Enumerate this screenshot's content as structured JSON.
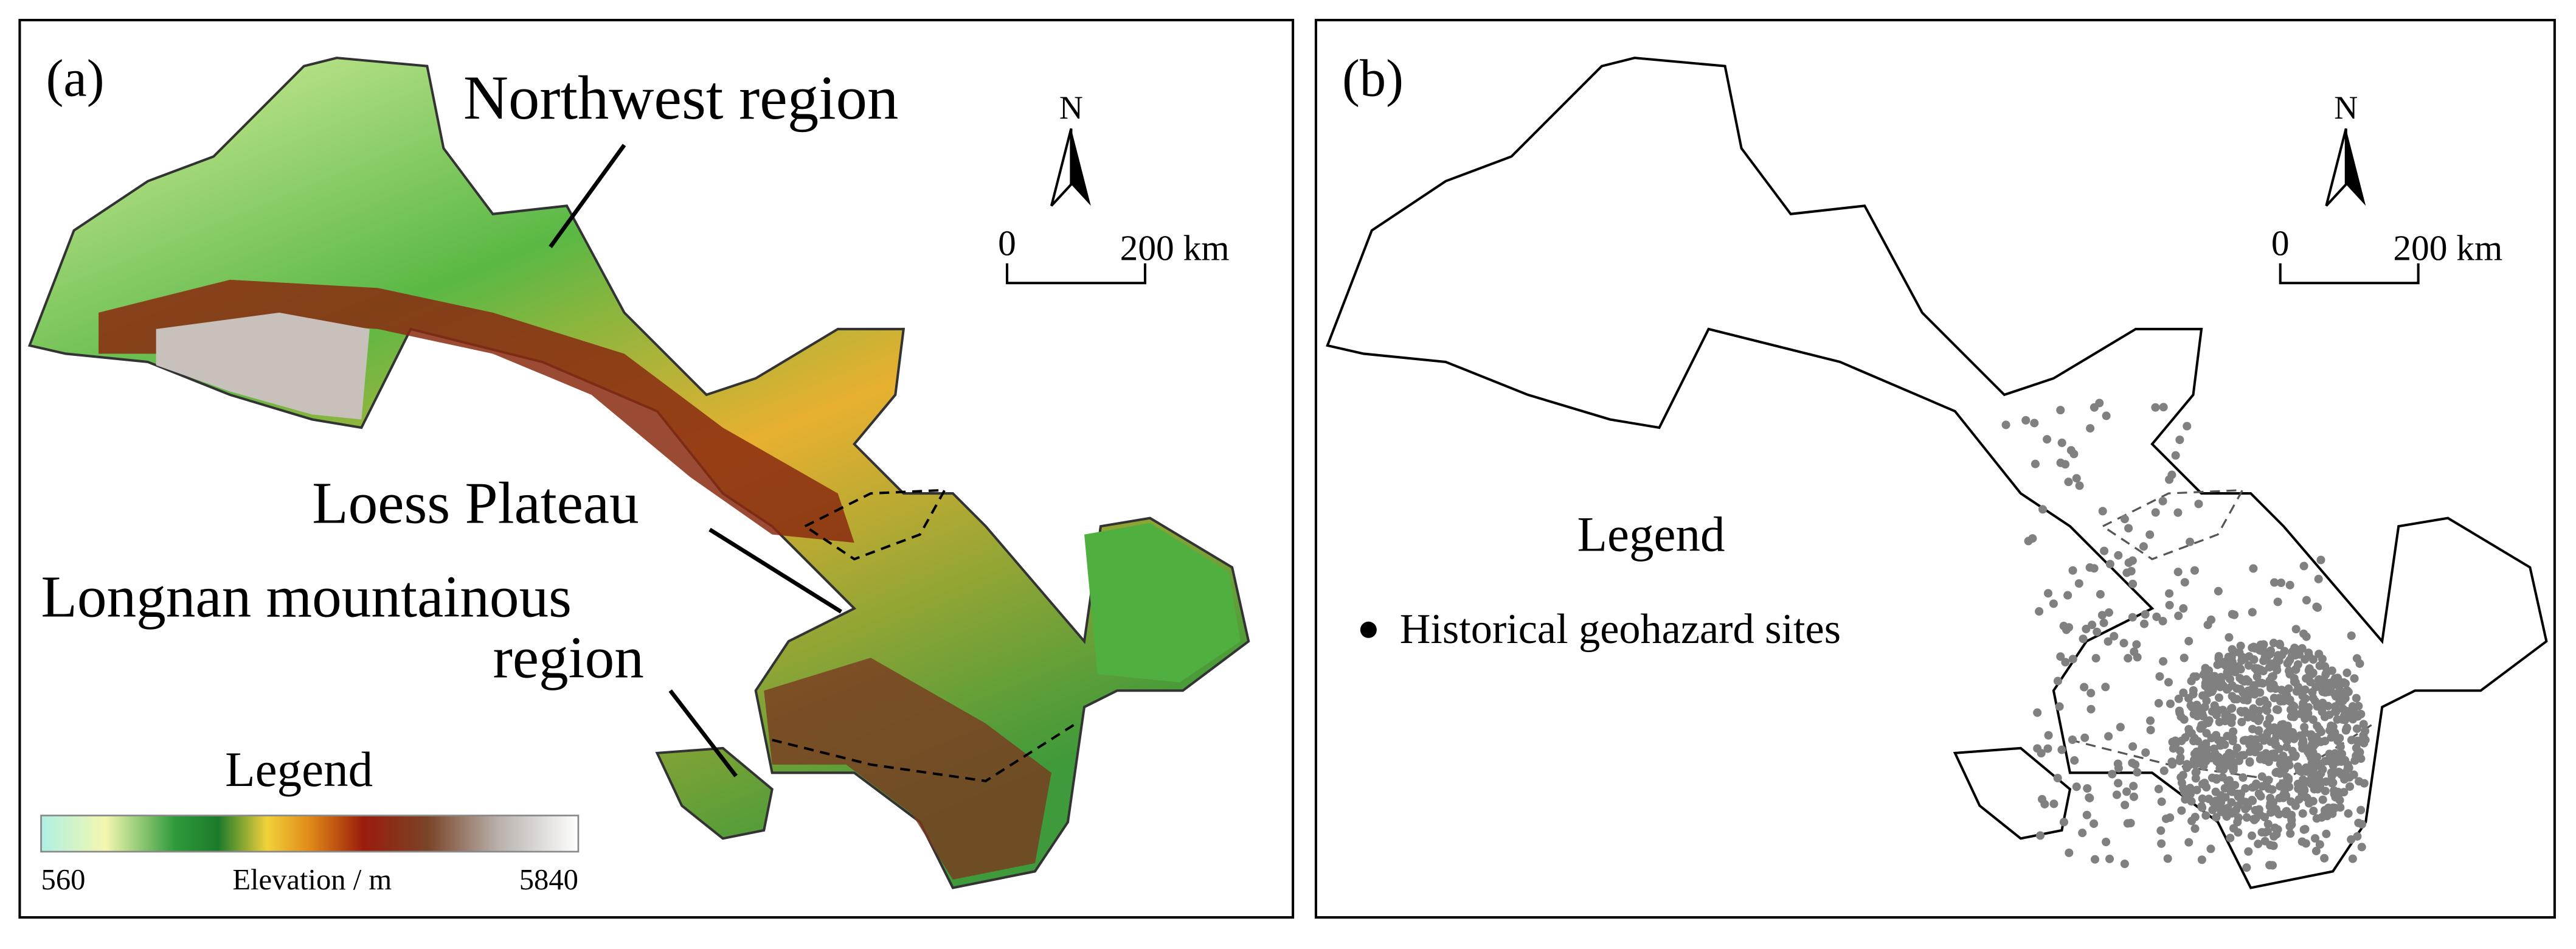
{
  "panel_a": {
    "label": "(a)",
    "annotations": [
      "Northwest region",
      "Loess Plateau",
      "Longnan mountainous",
      "region"
    ],
    "north": "N",
    "scale_start": "0",
    "scale_end": "200 km",
    "legend": {
      "title": "Legend",
      "min": 560,
      "caption": "Elevation / m",
      "max": 5840
    }
  },
  "panel_b": {
    "label": "(b)",
    "north": "N",
    "scale_start": "0",
    "scale_end": "200 km",
    "legend": {
      "title": "Legend",
      "item": "Historical geohazard sites"
    }
  }
}
